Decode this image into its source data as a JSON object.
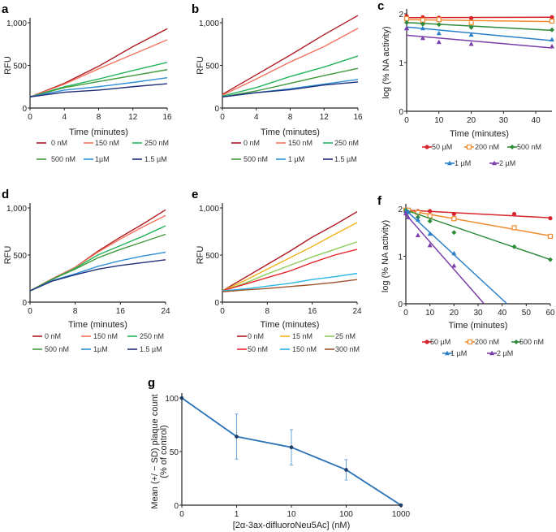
{
  "chart_data": [
    {
      "panel": "a",
      "type": "line",
      "xlabel": "Time (minutes)",
      "ylabel": "RFU",
      "xlim": [
        0,
        16
      ],
      "ylim": [
        0,
        1100
      ],
      "xticks": [
        "0",
        "4",
        "8",
        "12",
        "16"
      ],
      "yticks": [
        "0",
        "500",
        "1,000"
      ],
      "x": [
        0,
        4,
        8,
        12,
        16
      ],
      "series": [
        {
          "name": "0 nM",
          "color": "#b01c24",
          "values": [
            130,
            290,
            490,
            720,
            930
          ]
        },
        {
          "name": "150 nM",
          "color": "#f4735d",
          "values": [
            130,
            280,
            460,
            630,
            800
          ]
        },
        {
          "name": "250 nM",
          "color": "#22b45a",
          "values": [
            130,
            250,
            340,
            440,
            535
          ]
        },
        {
          "name": "500 nM",
          "color": "#3f9a3c",
          "values": [
            130,
            240,
            310,
            380,
            450
          ]
        },
        {
          "name": "1µM",
          "color": "#2f8fd6",
          "values": [
            130,
            210,
            250,
            300,
            355
          ]
        },
        {
          "name": "1.5 µM",
          "color": "#1f2f7a",
          "values": [
            130,
            185,
            210,
            250,
            285
          ]
        }
      ]
    },
    {
      "panel": "b",
      "type": "line",
      "xlabel": "Time (minutes)",
      "ylabel": "RFU",
      "xlim": [
        0,
        16
      ],
      "ylim": [
        0,
        1100
      ],
      "xticks": [
        "0",
        "4",
        "8",
        "12",
        "16"
      ],
      "yticks": [
        "0",
        "500",
        "1,000"
      ],
      "x": [
        0,
        4,
        8,
        12,
        16
      ],
      "series": [
        {
          "name": "0 nM",
          "color": "#b01c24",
          "values": [
            160,
            390,
            620,
            860,
            1085
          ]
        },
        {
          "name": "150 nM",
          "color": "#f4735d",
          "values": [
            150,
            340,
            540,
            720,
            935
          ]
        },
        {
          "name": "250 nM",
          "color": "#22b45a",
          "values": [
            140,
            240,
            370,
            480,
            610
          ]
        },
        {
          "name": "500 nM",
          "color": "#3f9a3c",
          "values": [
            130,
            200,
            290,
            380,
            465
          ]
        },
        {
          "name": "1 µM",
          "color": "#2f8fd6",
          "values": [
            130,
            180,
            225,
            280,
            335
          ]
        },
        {
          "name": "1.5 µM",
          "color": "#1f2f7a",
          "values": [
            130,
            180,
            215,
            270,
            305
          ]
        }
      ]
    },
    {
      "panel": "c",
      "type": "scatter",
      "xlabel": "Time (minutes)",
      "ylabel": "log (% NA activity)",
      "xlim": [
        0,
        45
      ],
      "ylim": [
        0,
        2
      ],
      "xticks": [
        "0",
        "10",
        "20",
        "30",
        "40"
      ],
      "yticks": [
        "0",
        "1",
        "2"
      ],
      "x": [
        0,
        5,
        10,
        20,
        45
      ],
      "series": [
        {
          "name": "50 µM",
          "color": "#d7262b",
          "marker": "circle",
          "values": [
            1.95,
            1.93,
            1.92,
            1.91,
            1.93
          ],
          "fit": [
            [
              0,
              1.92
            ],
            [
              45,
              1.93
            ]
          ]
        },
        {
          "name": "200 nM",
          "color": "#f08a2c",
          "marker": "square",
          "values": [
            1.9,
            1.87,
            1.88,
            1.82,
            1.85
          ],
          "fit": [
            [
              0,
              1.88
            ],
            [
              45,
              1.84
            ]
          ]
        },
        {
          "name": "500 nM",
          "color": "#2e8b3a",
          "marker": "diamond",
          "values": [
            1.82,
            1.79,
            1.78,
            1.72,
            1.67
          ],
          "fit": [
            [
              0,
              1.82
            ],
            [
              45,
              1.66
            ]
          ]
        },
        {
          "name": "1 µM",
          "color": "#2a7fc9",
          "marker": "triangle",
          "values": [
            1.71,
            1.7,
            1.6,
            1.57,
            1.47
          ],
          "fit": [
            [
              0,
              1.73
            ],
            [
              45,
              1.45
            ]
          ]
        },
        {
          "name": "2 µM",
          "color": "#7a3fa8",
          "marker": "triangle",
          "values": [
            1.7,
            1.5,
            1.42,
            1.38,
            1.33
          ],
          "fit": [
            [
              0,
              1.56
            ],
            [
              45,
              1.3
            ]
          ]
        }
      ]
    },
    {
      "panel": "d",
      "type": "line",
      "xlabel": "Time (minutes)",
      "ylabel": "RFU",
      "xlim": [
        0,
        24
      ],
      "ylim": [
        0,
        1000
      ],
      "xticks": [
        "0",
        "8",
        "16",
        "24"
      ],
      "yticks": [
        "0",
        "500",
        "1,000"
      ],
      "x": [
        0,
        4,
        8,
        12,
        16,
        20,
        24
      ],
      "series": [
        {
          "name": "0 nM",
          "color": "#b01c24",
          "values": [
            120,
            250,
            370,
            540,
            690,
            830,
            980
          ]
        },
        {
          "name": "150 nM",
          "color": "#f4735d",
          "values": [
            120,
            250,
            370,
            530,
            670,
            800,
            920
          ]
        },
        {
          "name": "250 nM",
          "color": "#22b45a",
          "values": [
            120,
            245,
            360,
            500,
            600,
            700,
            810
          ]
        },
        {
          "name": "500 nM",
          "color": "#3f9a3c",
          "values": [
            120,
            245,
            350,
            470,
            560,
            640,
            720
          ]
        },
        {
          "name": "1µM",
          "color": "#2f8fd6",
          "values": [
            120,
            230,
            300,
            380,
            440,
            490,
            530
          ]
        },
        {
          "name": "1.5 µM",
          "color": "#1f2f7a",
          "values": [
            120,
            225,
            290,
            350,
            390,
            420,
            450
          ]
        }
      ]
    },
    {
      "panel": "e",
      "type": "line",
      "xlabel": "Time (minutes)",
      "ylabel": "RFU",
      "xlim": [
        0,
        24
      ],
      "ylim": [
        0,
        1000
      ],
      "xticks": [
        "0",
        "8",
        "16",
        "24"
      ],
      "yticks": [
        "0",
        "500",
        "1,000"
      ],
      "x": [
        0,
        4,
        8,
        12,
        16,
        20,
        24
      ],
      "series": [
        {
          "name": "0 nM",
          "color": "#b01c24",
          "values": [
            120,
            260,
            400,
            540,
            690,
            820,
            960
          ]
        },
        {
          "name": "15 nM",
          "color": "#f4b21a",
          "values": [
            120,
            230,
            350,
            470,
            590,
            720,
            845
          ]
        },
        {
          "name": "25 nM",
          "color": "#8fcc5a",
          "values": [
            120,
            200,
            300,
            390,
            480,
            560,
            640
          ]
        },
        {
          "name": "50 nM",
          "color": "#e8262d",
          "values": [
            120,
            190,
            260,
            330,
            420,
            500,
            560
          ]
        },
        {
          "name": "150 nM",
          "color": "#29b6e8",
          "values": [
            120,
            140,
            170,
            200,
            240,
            270,
            305
          ]
        },
        {
          "name": "300 nM",
          "color": "#a0522d",
          "values": [
            110,
            130,
            145,
            165,
            185,
            210,
            240
          ]
        }
      ]
    },
    {
      "panel": "f",
      "type": "scatter",
      "xlabel": "Time (minutes)",
      "ylabel": "log (% NA activity)",
      "xlim": [
        0,
        60
      ],
      "ylim": [
        0,
        2
      ],
      "xticks": [
        "0",
        "10",
        "20",
        "30",
        "40",
        "50",
        "60"
      ],
      "yticks": [
        "0",
        "1",
        "2"
      ],
      "series": [
        {
          "name": "50 µM",
          "color": "#d7262b",
          "marker": "circle",
          "x": [
            0,
            1,
            5,
            10,
            20,
            45,
            60
          ],
          "values": [
            1.97,
            1.97,
            1.95,
            1.95,
            1.89,
            1.89,
            1.8
          ],
          "fit": [
            [
              0,
              1.97
            ],
            [
              60,
              1.81
            ]
          ]
        },
        {
          "name": "200 nM",
          "color": "#f08a2c",
          "marker": "square",
          "x": [
            0,
            1,
            5,
            10,
            20,
            45,
            60
          ],
          "values": [
            1.97,
            1.97,
            1.92,
            1.85,
            1.79,
            1.6,
            1.42
          ],
          "fit": [
            [
              0,
              1.97
            ],
            [
              60,
              1.43
            ]
          ]
        },
        {
          "name": "500 nM",
          "color": "#2e8b3a",
          "marker": "diamond",
          "x": [
            0,
            1,
            5,
            10,
            20,
            45,
            60
          ],
          "values": [
            1.97,
            1.93,
            1.82,
            1.74,
            1.5,
            1.2,
            0.93
          ],
          "fit": [
            [
              0,
              1.97
            ],
            [
              60,
              0.93
            ]
          ]
        },
        {
          "name": "1 µM",
          "color": "#2a7fc9",
          "marker": "triangle",
          "x": [
            0,
            1,
            5,
            10,
            20
          ],
          "values": [
            1.95,
            1.93,
            1.77,
            1.47,
            1.06
          ],
          "fit": [
            [
              0,
              1.97
            ],
            [
              42,
              0
            ]
          ]
        },
        {
          "name": "2 µM",
          "color": "#7a3fa8",
          "marker": "triangle",
          "x": [
            0,
            1,
            5,
            10,
            20
          ],
          "values": [
            1.9,
            1.82,
            1.44,
            1.23,
            0.8
          ],
          "fit": [
            [
              0,
              1.88
            ],
            [
              32.5,
              0
            ]
          ]
        }
      ]
    },
    {
      "panel": "g",
      "type": "line",
      "xlabel": "[2α-3ax-difluoroNeu5Ac] (nM)",
      "ylabel": [
        "Mean (+/ − SD) plaque count",
        "(% of control)"
      ],
      "categories": [
        "0",
        "1",
        "10",
        "100",
        "1000"
      ],
      "ylim": [
        0,
        100
      ],
      "yticks": [
        "0",
        "50",
        "100"
      ],
      "color": "#2a72b8",
      "values": [
        100,
        64,
        54,
        33,
        0
      ],
      "sd": [
        0,
        21,
        16.5,
        9.5,
        0
      ]
    }
  ]
}
